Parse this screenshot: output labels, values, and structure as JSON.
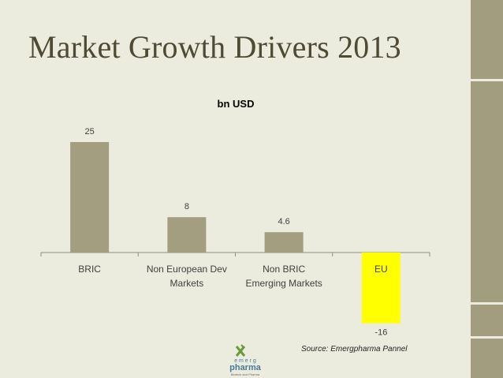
{
  "slide": {
    "title": "Market Growth Drivers 2013",
    "source_note": "Source: Emergpharma Pannel"
  },
  "logo": {
    "text_top": "e m e r g",
    "text_main": "pharma",
    "text_sub": "Biotech and Pharma"
  },
  "colors": {
    "background": "#ebebde",
    "bar": "#a39e7f",
    "highlight_bar": "#ffff00",
    "title": "#4f4a34",
    "side_block": "#a29d7f"
  },
  "chart_data": {
    "type": "bar",
    "title": "bn USD",
    "xlabel": "",
    "ylabel": "",
    "categories": [
      "BRIC",
      "Non European Dev Markets",
      "Non BRIC Emerging Markets",
      "EU"
    ],
    "category_label_lines": [
      [
        "BRIC"
      ],
      [
        "Non European Dev",
        "Markets"
      ],
      [
        "Non BRIC",
        "Emerging Markets"
      ],
      [
        "EU"
      ]
    ],
    "values": [
      25,
      8,
      4.6,
      -16
    ],
    "data_labels": [
      "25",
      "8",
      "4.6",
      "-16"
    ],
    "bar_colors": [
      "#a39e7f",
      "#a39e7f",
      "#a39e7f",
      "#ffff00"
    ],
    "ylim": [
      -17,
      30
    ],
    "grid": false,
    "legend": "none"
  }
}
